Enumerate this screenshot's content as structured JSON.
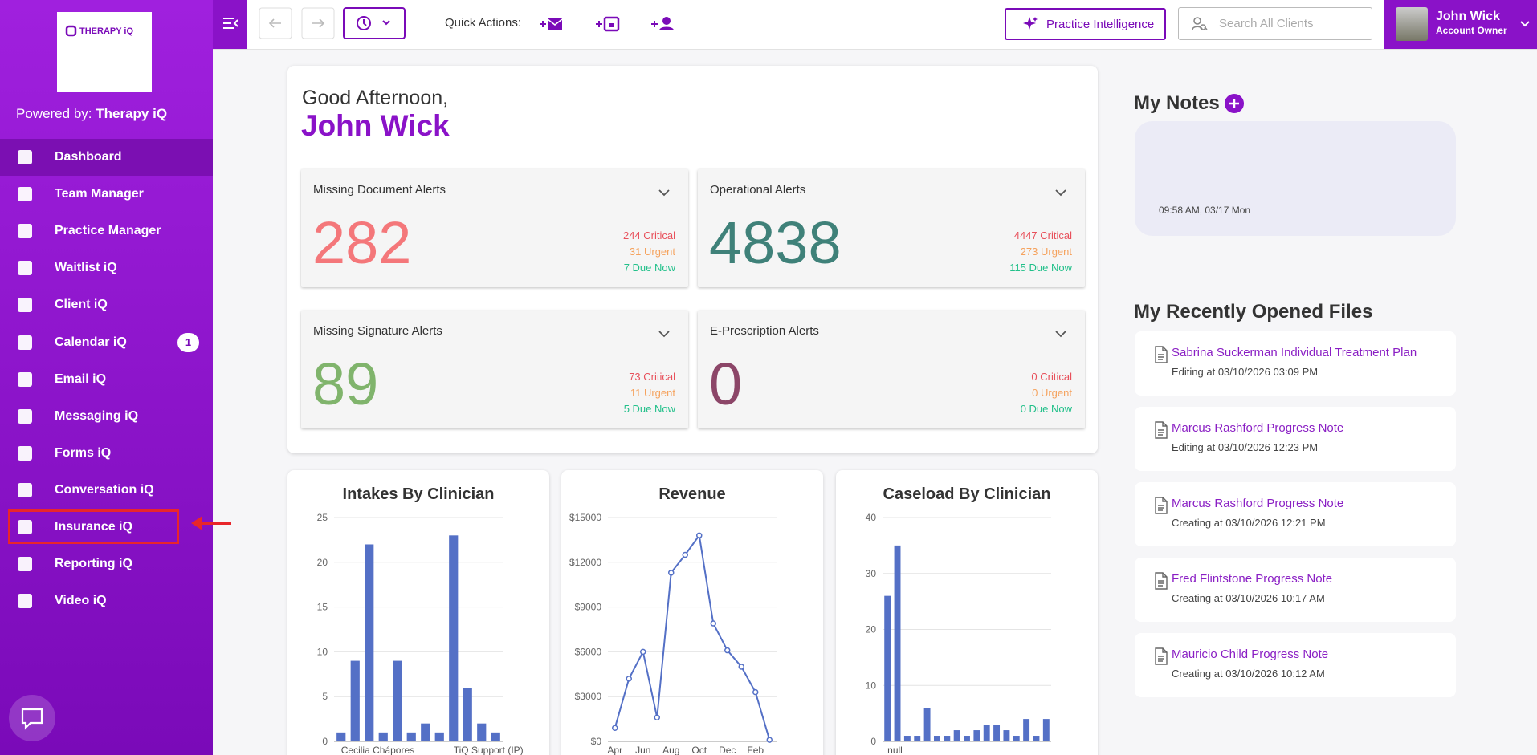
{
  "sidebar": {
    "logo_text": "THERAPY iQ",
    "powered_by": "Powered by:",
    "brand": "Therapy iQ",
    "nav": [
      {
        "label": "Dashboard"
      },
      {
        "label": "Team Manager"
      },
      {
        "label": "Practice Manager"
      },
      {
        "label": "Waitlist iQ"
      },
      {
        "label": "Client iQ"
      },
      {
        "label": "Calendar iQ",
        "badge": "1"
      },
      {
        "label": "Email iQ"
      },
      {
        "label": "Messaging iQ"
      },
      {
        "label": "Forms iQ"
      },
      {
        "label": "Conversation iQ"
      },
      {
        "label": "Insurance iQ"
      },
      {
        "label": "Reporting iQ"
      },
      {
        "label": "Video iQ"
      }
    ]
  },
  "topbar": {
    "quick_actions": "Quick Actions:",
    "practice_intelligence": "Practice Intelligence",
    "search_placeholder": "Search All Clients",
    "user_name": "John Wick",
    "user_role": "Account Owner"
  },
  "greeting": {
    "salutation": "Good Afternoon,",
    "name": "John Wick"
  },
  "alerts": [
    {
      "title": "Missing Document Alerts",
      "count": 282,
      "critical": "244 Critical",
      "urgent": "31 Urgent",
      "due": "7 Due Now",
      "color": "#f4777a"
    },
    {
      "title": "Operational Alerts",
      "count": 4838,
      "critical": "4447 Critical",
      "urgent": "273 Urgent",
      "due": "115 Due Now",
      "color": "#3f8179"
    },
    {
      "title": "Missing Signature Alerts",
      "count": 89,
      "critical": "73 Critical",
      "urgent": "11 Urgent",
      "due": "5 Due Now",
      "color": "#80b46c"
    },
    {
      "title": "E-Prescription Alerts",
      "count": 0,
      "critical": "0 Critical",
      "urgent": "0 Urgent",
      "due": "0 Due Now",
      "color": "#8c4668"
    }
  ],
  "charts": [
    {
      "type": "bar",
      "title": "Intakes By Clinician",
      "categories": [
        "Cecilia Chápores",
        null,
        null,
        null,
        null,
        null,
        null,
        null,
        "TiQ Support (IP)",
        null,
        null,
        null
      ],
      "values": [
        1,
        9,
        22,
        1,
        9,
        1,
        2,
        1,
        23,
        6,
        2,
        1
      ],
      "ylim": [
        0,
        25
      ],
      "yticks": [
        0,
        5,
        10,
        15,
        20,
        25
      ],
      "color": "#5470c6",
      "grid": true
    },
    {
      "type": "line",
      "title": "Revenue",
      "categories": [
        "Apr",
        null,
        "Jun",
        null,
        "Aug",
        null,
        "Oct",
        null,
        "Dec",
        null,
        "Feb",
        null
      ],
      "values": [
        900,
        4200,
        6000,
        1600,
        11300,
        12500,
        13800,
        7900,
        6100,
        5000,
        3300,
        100
      ],
      "ylim": [
        0,
        15000
      ],
      "yticks": [
        {
          "value": 0,
          "label": "$0"
        },
        {
          "value": 3000,
          "label": "$3000"
        },
        {
          "value": 6000,
          "label": "$6000"
        },
        {
          "value": 9000,
          "label": "$9000"
        },
        {
          "value": 12000,
          "label": "$12000"
        },
        {
          "value": 15000,
          "label": "$15000"
        }
      ],
      "color": "#5470c6",
      "grid": true
    },
    {
      "type": "bar",
      "title": "Caseload By Clinician",
      "categories": [
        "null",
        null,
        null,
        null,
        null,
        null,
        null,
        null,
        null,
        null,
        null,
        null,
        null,
        null,
        null,
        null,
        null
      ],
      "values": [
        26,
        35,
        1,
        1,
        6,
        1,
        1,
        2,
        1,
        2,
        3,
        3,
        2,
        1,
        4,
        1,
        4
      ],
      "ylim": [
        0,
        40
      ],
      "yticks": [
        0,
        10,
        20,
        30,
        40
      ],
      "color": "#5470c6",
      "grid": true
    }
  ],
  "notes": {
    "title": "My Notes",
    "items": [
      "09:58 AM, 03/17 Mon"
    ]
  },
  "files": {
    "title": "My Recently Opened Files",
    "items": [
      {
        "name": "Sabrina Suckerman Individual Treatment Plan",
        "status": "Editing at 03/10/2026 03:09 PM"
      },
      {
        "name": "Marcus Rashford Progress Note",
        "status": "Editing at 03/10/2026 12:23 PM"
      },
      {
        "name": "Marcus Rashford Progress Note",
        "status": "Creating at 03/10/2026 12:21 PM"
      },
      {
        "name": "Fred Flintstone Progress Note",
        "status": "Creating at 03/10/2026 10:17 AM"
      },
      {
        "name": "Mauricio Child Progress Note",
        "status": "Creating at 03/10/2026 10:12 AM"
      }
    ]
  }
}
